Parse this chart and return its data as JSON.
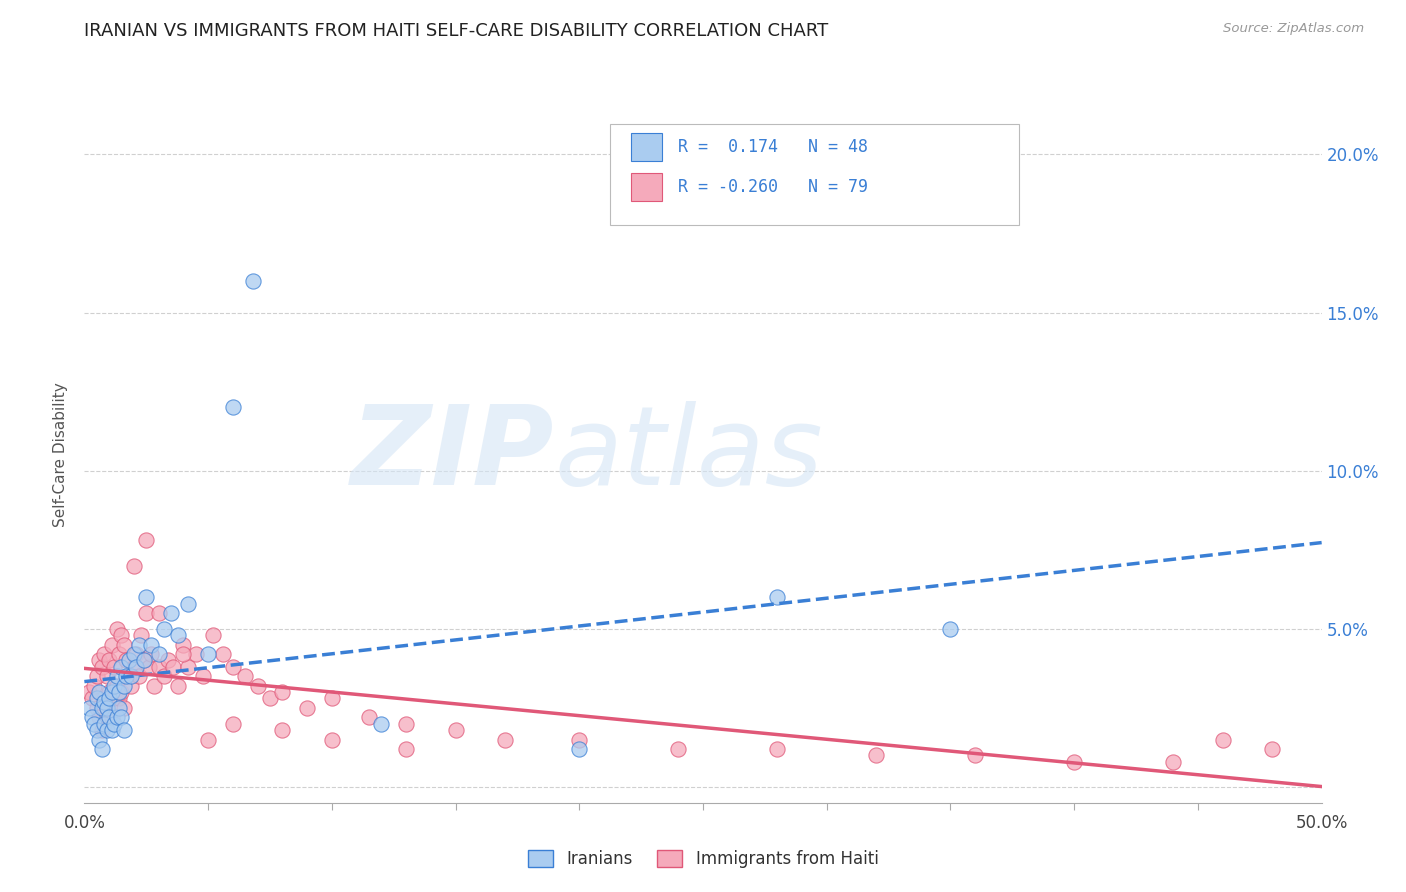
{
  "title": "IRANIAN VS IMMIGRANTS FROM HAITI SELF-CARE DISABILITY CORRELATION CHART",
  "source": "Source: ZipAtlas.com",
  "ylabel": "Self-Care Disability",
  "xlim": [
    0.0,
    0.5
  ],
  "ylim": [
    -0.005,
    0.215
  ],
  "legend_label1": "Iranians",
  "legend_label2": "Immigrants from Haiti",
  "R1": 0.174,
  "N1": 48,
  "R2": -0.26,
  "N2": 79,
  "color_blue": "#aaccf0",
  "color_pink": "#f5aabb",
  "line_blue": "#3a7fd5",
  "line_pink": "#e05878",
  "watermark_zip": "ZIP",
  "watermark_atlas": "atlas",
  "background": "#ffffff",
  "grid_color": "#d0d0d0",
  "iranians_x": [
    0.002,
    0.003,
    0.004,
    0.005,
    0.005,
    0.006,
    0.006,
    0.007,
    0.007,
    0.008,
    0.008,
    0.009,
    0.009,
    0.01,
    0.01,
    0.011,
    0.011,
    0.012,
    0.012,
    0.013,
    0.013,
    0.014,
    0.014,
    0.015,
    0.015,
    0.016,
    0.016,
    0.017,
    0.018,
    0.019,
    0.02,
    0.021,
    0.022,
    0.024,
    0.025,
    0.027,
    0.03,
    0.032,
    0.035,
    0.038,
    0.042,
    0.05,
    0.06,
    0.068,
    0.12,
    0.2,
    0.28,
    0.35
  ],
  "iranians_y": [
    0.025,
    0.022,
    0.02,
    0.028,
    0.018,
    0.03,
    0.015,
    0.025,
    0.012,
    0.027,
    0.02,
    0.025,
    0.018,
    0.028,
    0.022,
    0.03,
    0.018,
    0.032,
    0.02,
    0.035,
    0.022,
    0.03,
    0.025,
    0.038,
    0.022,
    0.032,
    0.018,
    0.035,
    0.04,
    0.035,
    0.042,
    0.038,
    0.045,
    0.04,
    0.06,
    0.045,
    0.042,
    0.05,
    0.055,
    0.048,
    0.058,
    0.042,
    0.12,
    0.16,
    0.02,
    0.012,
    0.06,
    0.05
  ],
  "haiti_x": [
    0.002,
    0.003,
    0.004,
    0.005,
    0.005,
    0.006,
    0.006,
    0.007,
    0.007,
    0.008,
    0.008,
    0.009,
    0.009,
    0.01,
    0.01,
    0.011,
    0.011,
    0.012,
    0.012,
    0.013,
    0.013,
    0.014,
    0.014,
    0.015,
    0.015,
    0.016,
    0.016,
    0.017,
    0.018,
    0.019,
    0.02,
    0.021,
    0.022,
    0.023,
    0.024,
    0.025,
    0.026,
    0.027,
    0.028,
    0.03,
    0.032,
    0.034,
    0.036,
    0.038,
    0.04,
    0.042,
    0.045,
    0.048,
    0.052,
    0.056,
    0.06,
    0.065,
    0.07,
    0.075,
    0.08,
    0.09,
    0.1,
    0.115,
    0.13,
    0.15,
    0.17,
    0.2,
    0.24,
    0.28,
    0.32,
    0.36,
    0.4,
    0.44,
    0.46,
    0.48,
    0.02,
    0.025,
    0.03,
    0.04,
    0.05,
    0.06,
    0.08,
    0.1,
    0.13
  ],
  "haiti_y": [
    0.03,
    0.028,
    0.032,
    0.035,
    0.025,
    0.04,
    0.022,
    0.038,
    0.018,
    0.042,
    0.028,
    0.035,
    0.025,
    0.04,
    0.03,
    0.045,
    0.022,
    0.038,
    0.028,
    0.05,
    0.032,
    0.042,
    0.028,
    0.048,
    0.03,
    0.045,
    0.025,
    0.04,
    0.035,
    0.032,
    0.038,
    0.042,
    0.035,
    0.048,
    0.04,
    0.055,
    0.038,
    0.042,
    0.032,
    0.038,
    0.035,
    0.04,
    0.038,
    0.032,
    0.045,
    0.038,
    0.042,
    0.035,
    0.048,
    0.042,
    0.038,
    0.035,
    0.032,
    0.028,
    0.03,
    0.025,
    0.028,
    0.022,
    0.02,
    0.018,
    0.015,
    0.015,
    0.012,
    0.012,
    0.01,
    0.01,
    0.008,
    0.008,
    0.015,
    0.012,
    0.07,
    0.078,
    0.055,
    0.042,
    0.015,
    0.02,
    0.018,
    0.015,
    0.012
  ]
}
